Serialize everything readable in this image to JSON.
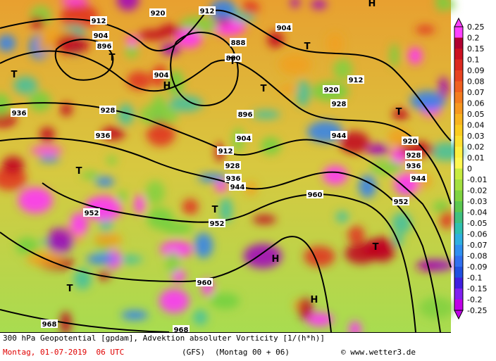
{
  "colorbar": {
    "labels": [
      "0.25",
      "0.2",
      "0.15",
      "0.1",
      "0.09",
      "0.08",
      "0.07",
      "0.06",
      "0.05",
      "0.04",
      "0.03",
      "0.02",
      "0.01",
      "0",
      "-0.01",
      "-0.02",
      "-0.03",
      "-0.04",
      "-0.05",
      "-0.06",
      "-0.07",
      "-0.08",
      "-0.09",
      "-0.1",
      "-0.15",
      "-0.2",
      "-0.25"
    ]
  },
  "map": {
    "contour_labels": [
      "912",
      "920",
      "904",
      "896",
      "888",
      "880",
      "904",
      "912",
      "904",
      "920",
      "928",
      "936",
      "928",
      "936",
      "944",
      "952",
      "896",
      "904",
      "912",
      "928",
      "936",
      "944",
      "920",
      "928",
      "936",
      "944",
      "952",
      "960",
      "952",
      "960",
      "968",
      "968",
      "912"
    ],
    "pressure_labels": [
      "T",
      "T",
      "T",
      "H",
      "T",
      "T",
      "T",
      "H",
      "T",
      "T",
      "T",
      "H",
      "T",
      "H"
    ]
  },
  "caption": {
    "line1": "300 hPa Geopotential [gpdam], Advektion absoluter Vorticity [1/(h*h)]",
    "date": "Montag, 01-07-2019  06 UTC",
    "model": "(GFS)",
    "run": "(Montag 00 + 06)",
    "credit": "© www.wetter3.de"
  }
}
